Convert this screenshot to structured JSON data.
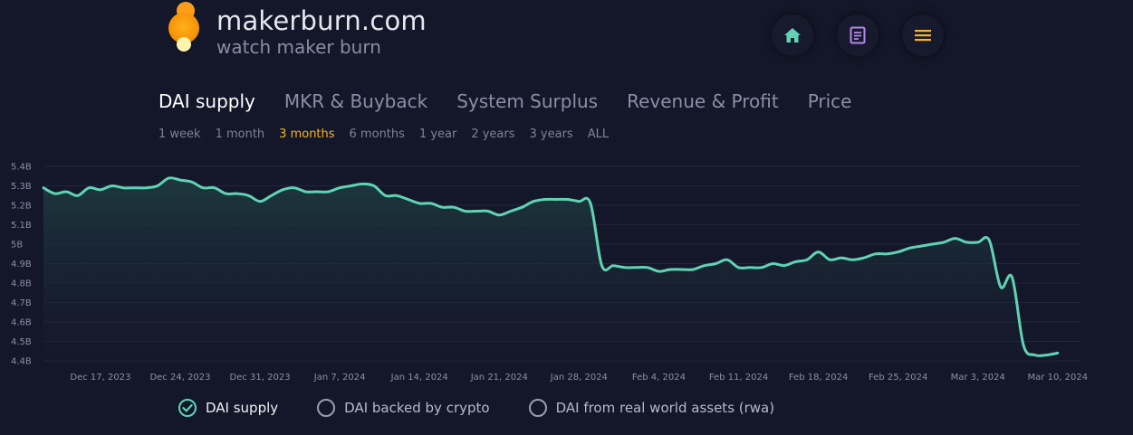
{
  "header": {
    "site_title": "makerburn.com",
    "tagline": "watch maker burn",
    "nav_icons": [
      "home-icon",
      "document-icon",
      "menu-icon"
    ]
  },
  "tabs": [
    {
      "label": "DAI supply",
      "active": true
    },
    {
      "label": "MKR & Buyback",
      "active": false
    },
    {
      "label": "System Surplus",
      "active": false
    },
    {
      "label": "Revenue & Profit",
      "active": false
    },
    {
      "label": "Price",
      "active": false
    }
  ],
  "ranges": [
    {
      "label": "1 week",
      "active": false
    },
    {
      "label": "1 month",
      "active": false
    },
    {
      "label": "3 months",
      "active": true
    },
    {
      "label": "6 months",
      "active": false
    },
    {
      "label": "1 year",
      "active": false
    },
    {
      "label": "2 years",
      "active": false
    },
    {
      "label": "3 years",
      "active": false
    },
    {
      "label": "ALL",
      "active": false
    }
  ],
  "colors": {
    "accent": "#f6b42a",
    "line": "#5fd3b4",
    "background": "#141729"
  },
  "chart_data": {
    "type": "area",
    "ylim": [
      4.4,
      5.4
    ],
    "y_ticks": [
      {
        "value": 5.4,
        "label": "5.4B"
      },
      {
        "value": 5.3,
        "label": "5.3B"
      },
      {
        "value": 5.2,
        "label": "5.2B"
      },
      {
        "value": 5.1,
        "label": "5.1B"
      },
      {
        "value": 5.0,
        "label": "5B"
      },
      {
        "value": 4.9,
        "label": "4.9B"
      },
      {
        "value": 4.8,
        "label": "4.8B"
      },
      {
        "value": 4.7,
        "label": "4.7B"
      },
      {
        "value": 4.6,
        "label": "4.6B"
      },
      {
        "value": 4.5,
        "label": "4.5B"
      },
      {
        "value": 4.4,
        "label": "4.4B"
      }
    ],
    "x_start": "2023-12-12",
    "x_end": "2024-03-12",
    "x_ticks": [
      {
        "date": "2023-12-17",
        "label": "Dec 17, 2023"
      },
      {
        "date": "2023-12-24",
        "label": "Dec 24, 2023"
      },
      {
        "date": "2023-12-31",
        "label": "Dec 31, 2023"
      },
      {
        "date": "2024-01-07",
        "label": "Jan 7, 2024"
      },
      {
        "date": "2024-01-14",
        "label": "Jan 14, 2024"
      },
      {
        "date": "2024-01-21",
        "label": "Jan 21, 2024"
      },
      {
        "date": "2024-01-28",
        "label": "Jan 28, 2024"
      },
      {
        "date": "2024-02-04",
        "label": "Feb 4, 2024"
      },
      {
        "date": "2024-02-11",
        "label": "Feb 11, 2024"
      },
      {
        "date": "2024-02-18",
        "label": "Feb 18, 2024"
      },
      {
        "date": "2024-02-25",
        "label": "Feb 25, 2024"
      },
      {
        "date": "2024-03-03",
        "label": "Mar 3, 2024"
      },
      {
        "date": "2024-03-10",
        "label": "Mar 10, 2024"
      }
    ],
    "series": [
      {
        "name": "DAI supply",
        "points": [
          [
            "2023-12-12",
            5.29
          ],
          [
            "2023-12-13",
            5.26
          ],
          [
            "2023-12-14",
            5.27
          ],
          [
            "2023-12-15",
            5.25
          ],
          [
            "2023-12-16",
            5.29
          ],
          [
            "2023-12-17",
            5.28
          ],
          [
            "2023-12-18",
            5.3
          ],
          [
            "2023-12-19",
            5.29
          ],
          [
            "2023-12-20",
            5.29
          ],
          [
            "2023-12-21",
            5.29
          ],
          [
            "2023-12-22",
            5.3
          ],
          [
            "2023-12-23",
            5.34
          ],
          [
            "2023-12-24",
            5.33
          ],
          [
            "2023-12-25",
            5.32
          ],
          [
            "2023-12-26",
            5.29
          ],
          [
            "2023-12-27",
            5.29
          ],
          [
            "2023-12-28",
            5.26
          ],
          [
            "2023-12-29",
            5.26
          ],
          [
            "2023-12-30",
            5.25
          ],
          [
            "2023-12-31",
            5.22
          ],
          [
            "2024-01-01",
            5.25
          ],
          [
            "2024-01-02",
            5.28
          ],
          [
            "2024-01-03",
            5.29
          ],
          [
            "2024-01-04",
            5.27
          ],
          [
            "2024-01-05",
            5.27
          ],
          [
            "2024-01-06",
            5.27
          ],
          [
            "2024-01-07",
            5.29
          ],
          [
            "2024-01-08",
            5.3
          ],
          [
            "2024-01-09",
            5.31
          ],
          [
            "2024-01-10",
            5.3
          ],
          [
            "2024-01-11",
            5.25
          ],
          [
            "2024-01-12",
            5.25
          ],
          [
            "2024-01-13",
            5.23
          ],
          [
            "2024-01-14",
            5.21
          ],
          [
            "2024-01-15",
            5.21
          ],
          [
            "2024-01-16",
            5.19
          ],
          [
            "2024-01-17",
            5.19
          ],
          [
            "2024-01-18",
            5.17
          ],
          [
            "2024-01-19",
            5.17
          ],
          [
            "2024-01-20",
            5.17
          ],
          [
            "2024-01-21",
            5.15
          ],
          [
            "2024-01-22",
            5.17
          ],
          [
            "2024-01-23",
            5.19
          ],
          [
            "2024-01-24",
            5.22
          ],
          [
            "2024-01-25",
            5.23
          ],
          [
            "2024-01-26",
            5.23
          ],
          [
            "2024-01-27",
            5.23
          ],
          [
            "2024-01-28",
            5.22
          ],
          [
            "2024-01-29",
            5.21
          ],
          [
            "2024-01-30",
            4.89
          ],
          [
            "2024-01-31",
            4.89
          ],
          [
            "2024-02-01",
            4.88
          ],
          [
            "2024-02-02",
            4.88
          ],
          [
            "2024-02-03",
            4.88
          ],
          [
            "2024-02-04",
            4.86
          ],
          [
            "2024-02-05",
            4.87
          ],
          [
            "2024-02-06",
            4.87
          ],
          [
            "2024-02-07",
            4.87
          ],
          [
            "2024-02-08",
            4.89
          ],
          [
            "2024-02-09",
            4.9
          ],
          [
            "2024-02-10",
            4.92
          ],
          [
            "2024-02-11",
            4.88
          ],
          [
            "2024-02-12",
            4.88
          ],
          [
            "2024-02-13",
            4.88
          ],
          [
            "2024-02-14",
            4.9
          ],
          [
            "2024-02-15",
            4.89
          ],
          [
            "2024-02-16",
            4.91
          ],
          [
            "2024-02-17",
            4.92
          ],
          [
            "2024-02-18",
            4.96
          ],
          [
            "2024-02-19",
            4.92
          ],
          [
            "2024-02-20",
            4.93
          ],
          [
            "2024-02-21",
            4.92
          ],
          [
            "2024-02-22",
            4.93
          ],
          [
            "2024-02-23",
            4.95
          ],
          [
            "2024-02-24",
            4.95
          ],
          [
            "2024-02-25",
            4.96
          ],
          [
            "2024-02-26",
            4.98
          ],
          [
            "2024-02-27",
            4.99
          ],
          [
            "2024-02-28",
            5.0
          ],
          [
            "2024-02-29",
            5.01
          ],
          [
            "2024-03-01",
            5.03
          ],
          [
            "2024-03-02",
            5.01
          ],
          [
            "2024-03-03",
            5.01
          ],
          [
            "2024-03-04",
            5.02
          ],
          [
            "2024-03-05",
            4.78
          ],
          [
            "2024-03-06",
            4.83
          ],
          [
            "2024-03-07",
            4.48
          ],
          [
            "2024-03-08",
            4.43
          ],
          [
            "2024-03-09",
            4.43
          ],
          [
            "2024-03-10",
            4.44
          ]
        ]
      }
    ]
  },
  "legend": [
    {
      "label": "DAI supply",
      "checked": true
    },
    {
      "label": "DAI backed by crypto",
      "checked": false
    },
    {
      "label": "DAI from real world assets (rwa)",
      "checked": false
    }
  ]
}
